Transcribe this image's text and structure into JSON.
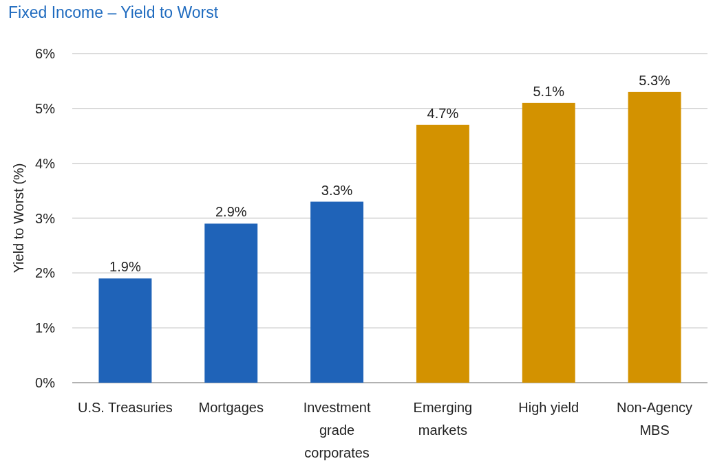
{
  "chart_data": {
    "type": "bar",
    "title": "Fixed Income – Yield to Worst",
    "ylabel": "Yield to Worst (%)",
    "categories": [
      "U.S. Treasuries",
      "Mortgages",
      "Investment grade corporates",
      "Emerging markets",
      "High yield",
      "Non-Agency MBS"
    ],
    "values": [
      1.9,
      2.9,
      3.3,
      4.7,
      5.1,
      5.3
    ],
    "value_labels": [
      "1.9%",
      "2.9%",
      "3.3%",
      "4.7%",
      "5.1%",
      "5.3%"
    ],
    "colors": [
      "#1f63b8",
      "#1f63b8",
      "#1f63b8",
      "#d39200",
      "#d39200",
      "#d39200"
    ],
    "ylim": [
      0,
      6
    ],
    "yticks": [
      {
        "value": 0,
        "label": "0%"
      },
      {
        "value": 1,
        "label": "1%"
      },
      {
        "value": 2,
        "label": "2%"
      },
      {
        "value": 3,
        "label": "3%"
      },
      {
        "value": 4,
        "label": "4%"
      },
      {
        "value": 5,
        "label": "5%"
      },
      {
        "value": 6,
        "label": "6%"
      }
    ],
    "grid": "y"
  }
}
